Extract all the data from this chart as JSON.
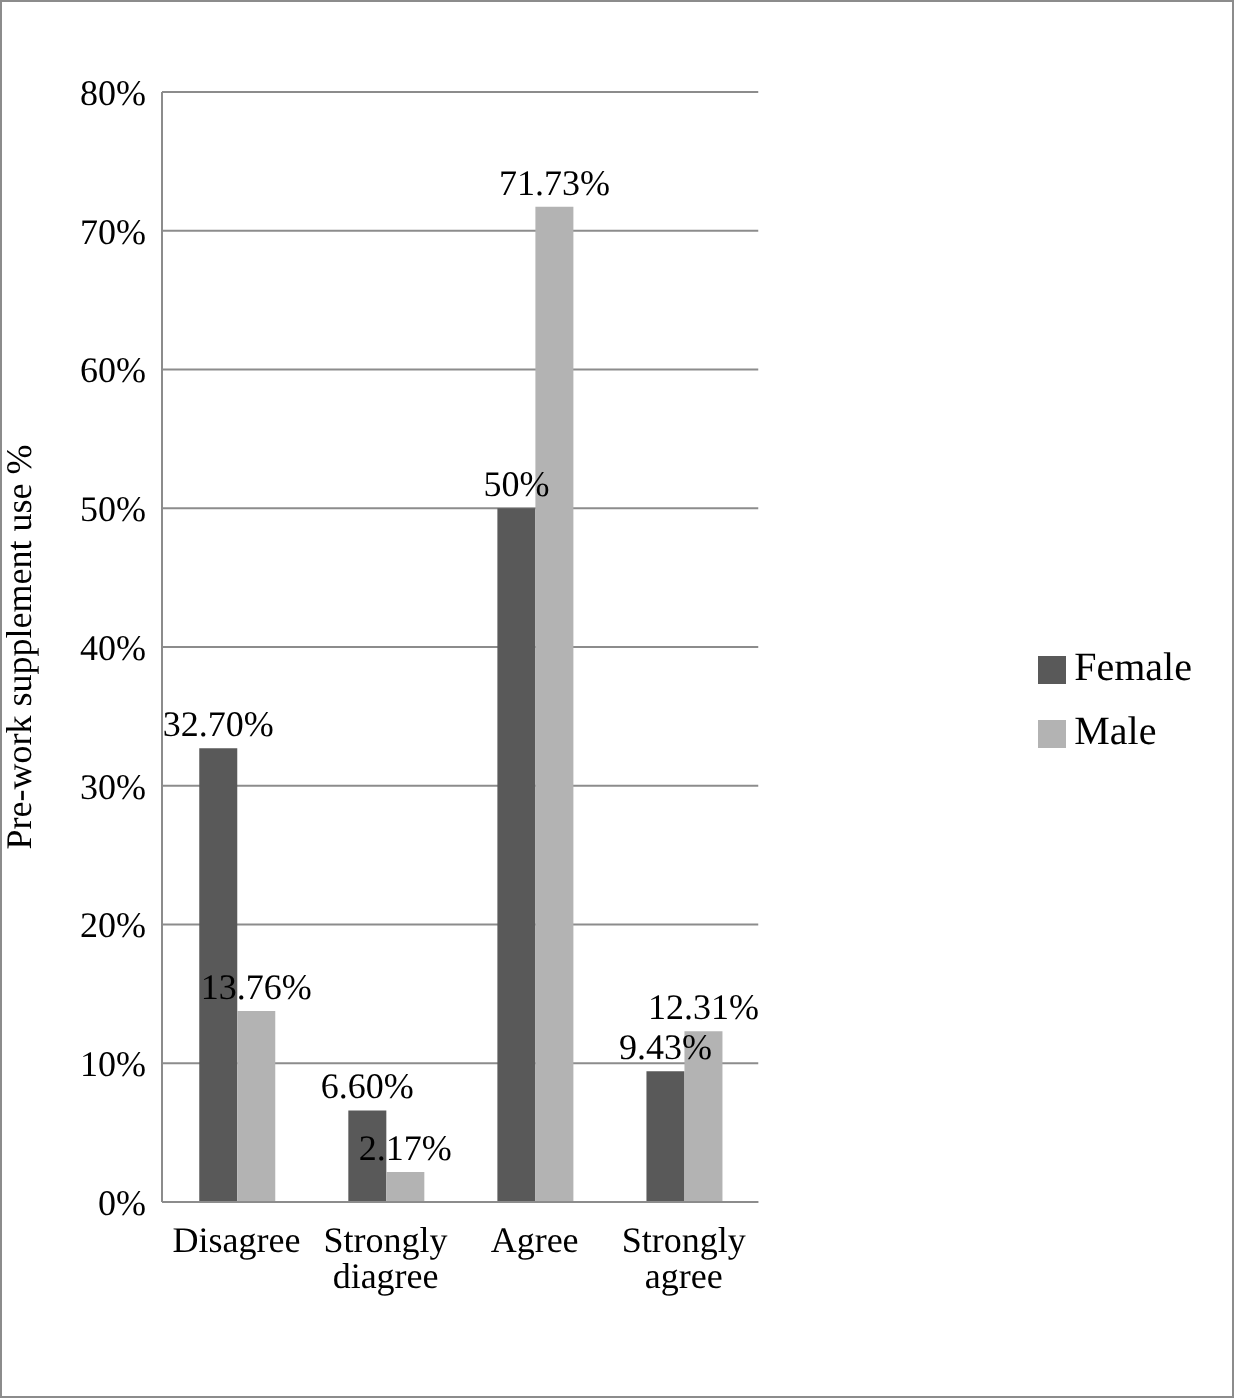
{
  "chart_data": {
    "type": "bar",
    "ylabel": "Pre-work supplement use %",
    "categories": [
      "Disagree",
      "Strongly diagree",
      "Agree",
      "Strongly agree"
    ],
    "series": [
      {
        "name": "Female",
        "color": "#595959",
        "values": [
          32.7,
          6.6,
          50,
          9.43
        ],
        "value_labels": [
          "32.70%",
          "6.60%",
          "50%",
          "9.43%"
        ]
      },
      {
        "name": "Male",
        "color": "#b3b3b3",
        "values": [
          13.76,
          2.17,
          71.73,
          12.31
        ],
        "value_labels": [
          "13.76%",
          "2.17%",
          "71.73%",
          "12.31%"
        ]
      }
    ],
    "ylim": [
      0,
      80
    ],
    "yticks": [
      {
        "value": 0,
        "label": "0%"
      },
      {
        "value": 10,
        "label": "10%"
      },
      {
        "value": 20,
        "label": "20%"
      },
      {
        "value": 30,
        "label": "30%"
      },
      {
        "value": 40,
        "label": "40%"
      },
      {
        "value": 50,
        "label": "50%"
      },
      {
        "value": 60,
        "label": "60%"
      },
      {
        "value": 70,
        "label": "70%"
      },
      {
        "value": 80,
        "label": "80%"
      }
    ],
    "grid": "y",
    "legend": "right"
  }
}
